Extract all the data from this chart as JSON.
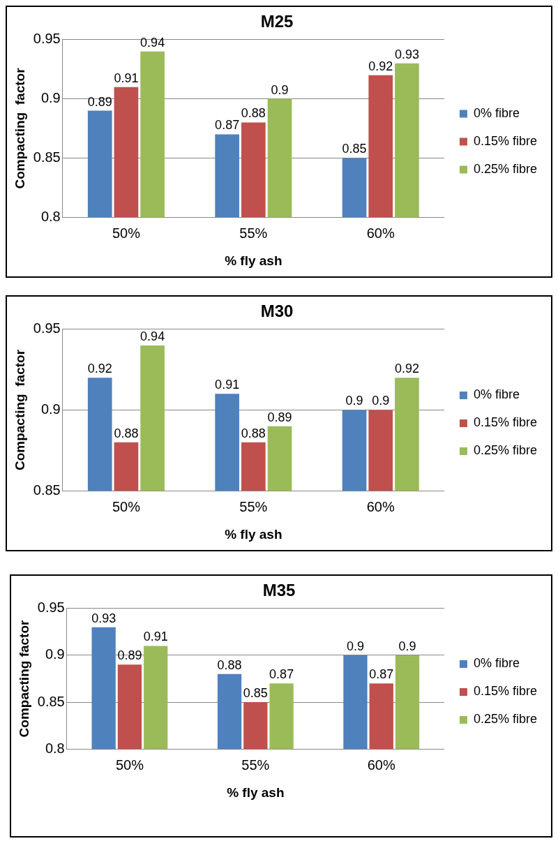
{
  "chart_data": [
    {
      "type": "bar",
      "title": "M25",
      "xlabel": "% fly ash",
      "ylabel": "Compacting  factor",
      "categories": [
        "50%",
        "55%",
        "60%"
      ],
      "series": [
        {
          "name": "0% fibre",
          "color": "#4f81bd",
          "values": [
            0.89,
            0.87,
            0.85
          ]
        },
        {
          "name": "0.15% fibre",
          "color": "#c0504d",
          "values": [
            0.91,
            0.88,
            0.92
          ]
        },
        {
          "name": "0.25% fibre",
          "color": "#9bbb59",
          "values": [
            0.94,
            0.9,
            0.93
          ]
        }
      ],
      "ylim": [
        0.8,
        0.95
      ],
      "yticks": [
        0.8,
        0.85,
        0.9,
        0.95
      ],
      "grid": "y",
      "legend": "right",
      "data_labels": true
    },
    {
      "type": "bar",
      "title": "M30",
      "xlabel": "% fly ash",
      "ylabel": "Compacting  factor",
      "categories": [
        "50%",
        "55%",
        "60%"
      ],
      "series": [
        {
          "name": "0% fibre",
          "color": "#4f81bd",
          "values": [
            0.92,
            0.91,
            0.9
          ]
        },
        {
          "name": "0.15% fibre",
          "color": "#c0504d",
          "values": [
            0.88,
            0.88,
            0.9
          ]
        },
        {
          "name": "0.25% fibre",
          "color": "#9bbb59",
          "values": [
            0.94,
            0.89,
            0.92
          ]
        }
      ],
      "ylim": [
        0.85,
        0.95
      ],
      "yticks": [
        0.85,
        0.9,
        0.95
      ],
      "grid": "y",
      "legend": "right",
      "data_labels": true
    },
    {
      "type": "bar",
      "title": "M35",
      "xlabel": "% fly ash",
      "ylabel": "Compacting factor",
      "categories": [
        "50%",
        "55%",
        "60%"
      ],
      "series": [
        {
          "name": "0% fibre",
          "color": "#4f81bd",
          "values": [
            0.93,
            0.88,
            0.9
          ]
        },
        {
          "name": "0.15% fibre",
          "color": "#c0504d",
          "values": [
            0.89,
            0.85,
            0.87
          ]
        },
        {
          "name": "0.25% fibre",
          "color": "#9bbb59",
          "values": [
            0.91,
            0.87,
            0.9
          ]
        }
      ],
      "ylim": [
        0.8,
        0.95
      ],
      "yticks": [
        0.8,
        0.85,
        0.9,
        0.95
      ],
      "grid": "y",
      "legend": "right",
      "data_labels": true
    }
  ]
}
